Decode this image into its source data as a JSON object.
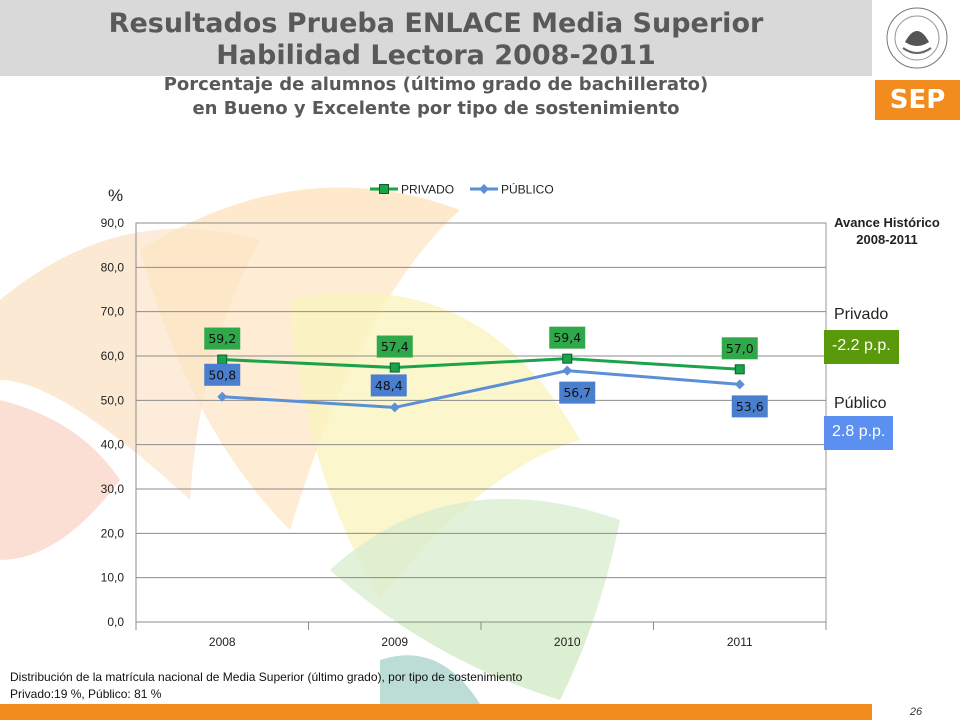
{
  "header": {
    "title_line1": "Resultados Prueba ENLACE Media Superior",
    "title_line2": "Habilidad Lectora 2008-2011",
    "subtitle_line1": "Porcentaje de alumnos (último grado de bachillerato)",
    "subtitle_line2": "en Bueno y Excelente por tipo de sostenimiento"
  },
  "logo": {
    "sep_text": "SEP",
    "seal_text": "ESTADOS UNIDOS MEXICANOS"
  },
  "side_panel": {
    "title_line1": "Avance Histórico",
    "title_line2": "2008-2011",
    "privado_label": "Privado",
    "privado_value": "-2.2 p.p.",
    "publico_label": "Público",
    "publico_value": "2.8 p.p."
  },
  "footer": {
    "line1": "Distribución de la matrícula nacional de Media Superior (último grado),  por tipo de sostenimiento",
    "line2": "Privado:19 %,  Público: 81 %",
    "page_number": "26"
  },
  "colors": {
    "privado": "#1aa34a",
    "publico": "#5b8fd6",
    "privado_label_bg": "#2fa84a",
    "publico_label_bg": "#4a7fd0",
    "orange": "#f28c1e",
    "green_badge": "#5a9a0a",
    "blue_badge": "#5b8ff0"
  },
  "chart_data": {
    "type": "line",
    "ylabel": "%",
    "categories": [
      "2008",
      "2009",
      "2010",
      "2011"
    ],
    "ylim": [
      0,
      90
    ],
    "yticks": [
      "0,0",
      "10,0",
      "20,0",
      "30,0",
      "40,0",
      "50,0",
      "60,0",
      "70,0",
      "80,0",
      "90,0"
    ],
    "grid": true,
    "legend_position": "top",
    "series": [
      {
        "name": "PRIVADO",
        "values": [
          59.2,
          57.4,
          59.4,
          57.0
        ],
        "labels": [
          "59,2",
          "57,4",
          "59,4",
          "57,0"
        ],
        "marker": "square"
      },
      {
        "name": "PÚBLICO",
        "values": [
          50.8,
          48.4,
          56.7,
          53.6
        ],
        "labels": [
          "50,8",
          "48,4",
          "56,7",
          "53,6"
        ],
        "marker": "diamond"
      }
    ]
  }
}
